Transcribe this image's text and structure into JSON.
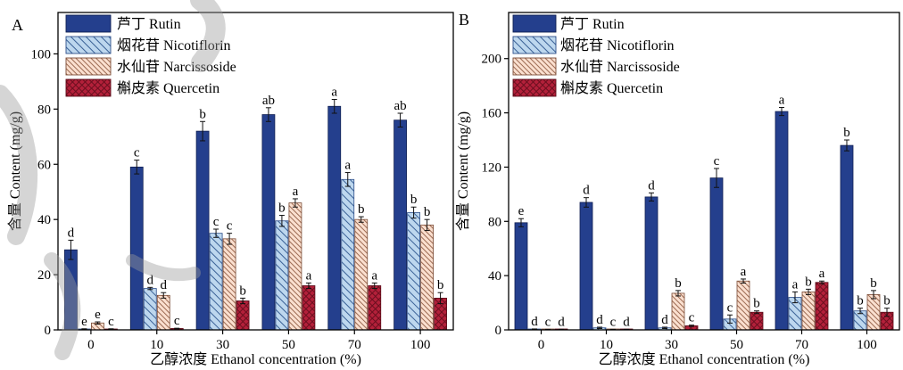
{
  "chart_data": [
    {
      "panel": "A",
      "type": "bar",
      "xlabel": "乙醇浓度 Ethanol concentration (%)",
      "ylabel": "含量 Content (mg/g)",
      "categories": [
        "0",
        "10",
        "30",
        "50",
        "70",
        "100"
      ],
      "ylim": [
        0,
        115
      ],
      "yticks": [
        0,
        20,
        40,
        60,
        80,
        100
      ],
      "grid": false,
      "legend": "top-left",
      "series": [
        {
          "name": "芦丁 Rutin",
          "color": "#243f8d",
          "edge": "#101f52",
          "line_color": "#101f52",
          "hatch": "solid",
          "values": [
            29,
            59,
            72,
            78,
            81,
            76
          ],
          "errors": [
            3.5,
            2.5,
            3.5,
            2.5,
            2.5,
            2.5
          ],
          "significance_letters": [
            "d",
            "c",
            "b",
            "ab",
            "a",
            "ab"
          ]
        },
        {
          "name": "烟花苷 Nicotiflorin",
          "color": "#bdd7ee",
          "edge": "#2e4f8a",
          "line_color": "#3a6196",
          "hatch": "back-diagonal",
          "values": [
            0.3,
            15,
            35,
            39.5,
            54.5,
            42.5
          ],
          "errors": [
            0.1,
            0.4,
            1.5,
            2,
            2.5,
            2
          ],
          "significance_letters": [
            "e",
            "d",
            "c",
            "b",
            "a",
            "b"
          ]
        },
        {
          "name": "水仙苷 Narcissoside",
          "color": "#fadfcf",
          "edge": "#7a4b35",
          "line_color": "#9c6a52",
          "hatch": "back-diagonal",
          "values": [
            2.5,
            12.5,
            33,
            46,
            40,
            38
          ],
          "errors": [
            0.4,
            1,
            2,
            1.5,
            1,
            2
          ],
          "significance_letters": [
            "e",
            "d",
            "c",
            "a",
            "b",
            "b"
          ]
        },
        {
          "name": "槲皮素 Quercetin",
          "color": "#b3203a",
          "edge": "#5a0c18",
          "line_color": "#6b0f1f",
          "hatch": "cross",
          "values": [
            0.3,
            0.5,
            10.5,
            16,
            16,
            11.5
          ],
          "errors": [
            0.1,
            0.1,
            1,
            1,
            1,
            2
          ],
          "significance_letters": [
            "c",
            "c",
            "b",
            "a",
            "a",
            "b"
          ]
        }
      ]
    },
    {
      "panel": "B",
      "type": "bar",
      "xlabel": "乙醇浓度 Ethanol concentration (%)",
      "ylabel": "含量 Content (mg/g)",
      "categories": [
        "0",
        "10",
        "30",
        "50",
        "70",
        "100"
      ],
      "ylim": [
        0,
        234
      ],
      "yticks": [
        0,
        40,
        80,
        120,
        160,
        200
      ],
      "grid": false,
      "legend": "top-left",
      "series": [
        {
          "name": "芦丁 Rutin",
          "color": "#243f8d",
          "edge": "#101f52",
          "line_color": "#101f52",
          "hatch": "solid",
          "values": [
            79,
            94,
            98,
            112,
            161,
            136
          ],
          "errors": [
            3,
            3.5,
            3,
            7,
            3,
            4
          ],
          "significance_letters": [
            "e",
            "d",
            "d",
            "c",
            "a",
            "b"
          ]
        },
        {
          "name": "烟花苷 Nicotiflorin",
          "color": "#bdd7ee",
          "edge": "#2e4f8a",
          "line_color": "#3a6196",
          "hatch": "back-diagonal",
          "values": [
            0.5,
            1.5,
            1.5,
            8,
            24,
            14
          ],
          "errors": [
            0.2,
            0.5,
            0.5,
            3,
            4,
            2
          ],
          "significance_letters": [
            "d",
            "d",
            "d",
            "c",
            "a",
            "b"
          ]
        },
        {
          "name": "水仙苷 Narcissoside",
          "color": "#fadfcf",
          "edge": "#7a4b35",
          "line_color": "#9c6a52",
          "hatch": "back-diagonal",
          "values": [
            0.3,
            0.3,
            27,
            36,
            28,
            26
          ],
          "errors": [
            0.1,
            0.1,
            2,
            1.5,
            2,
            3
          ],
          "significance_letters": [
            "c",
            "c",
            "b",
            "a",
            "b",
            "b"
          ]
        },
        {
          "name": "槲皮素 Quercetin",
          "color": "#b3203a",
          "edge": "#5a0c18",
          "line_color": "#6b0f1f",
          "hatch": "cross",
          "values": [
            0.3,
            0.3,
            3,
            13,
            35,
            13
          ],
          "errors": [
            0.1,
            0.1,
            0.5,
            1,
            1,
            3
          ],
          "significance_letters": [
            "d",
            "d",
            "c",
            "b",
            "a",
            "b"
          ]
        }
      ]
    }
  ]
}
